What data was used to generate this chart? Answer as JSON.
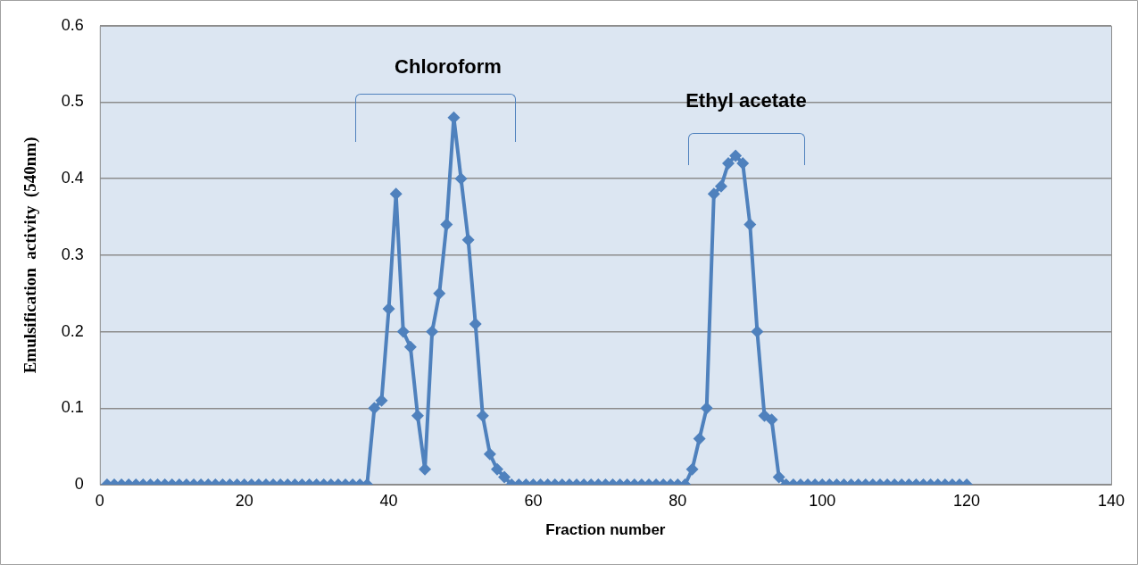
{
  "chart_data": {
    "type": "line",
    "xlabel": "Fraction number",
    "ylabel": "Emulsification  activity  (540nm)",
    "x": [
      1,
      2,
      3,
      4,
      5,
      6,
      7,
      8,
      9,
      10,
      11,
      12,
      13,
      14,
      15,
      16,
      17,
      18,
      19,
      20,
      21,
      22,
      23,
      24,
      25,
      26,
      27,
      28,
      29,
      30,
      31,
      32,
      33,
      34,
      35,
      36,
      37,
      38,
      39,
      40,
      41,
      42,
      43,
      44,
      45,
      46,
      47,
      48,
      49,
      50,
      51,
      52,
      53,
      54,
      55,
      56,
      57,
      58,
      59,
      60,
      61,
      62,
      63,
      64,
      65,
      66,
      67,
      68,
      69,
      70,
      71,
      72,
      73,
      74,
      75,
      76,
      77,
      78,
      79,
      80,
      81,
      82,
      83,
      84,
      85,
      86,
      87,
      88,
      89,
      90,
      91,
      92,
      93,
      94,
      95,
      96,
      97,
      98,
      99,
      100,
      101,
      102,
      103,
      104,
      105,
      106,
      107,
      108,
      109,
      110,
      111,
      112,
      113,
      114,
      115,
      116,
      117,
      118,
      119,
      120
    ],
    "series": [
      {
        "color": "#4f81bd",
        "values": [
          0,
          0,
          0,
          0,
          0,
          0,
          0,
          0,
          0,
          0,
          0,
          0,
          0,
          0,
          0,
          0,
          0,
          0,
          0,
          0,
          0,
          0,
          0,
          0,
          0,
          0,
          0,
          0,
          0,
          0,
          0,
          0,
          0,
          0,
          0,
          0,
          0,
          0.1,
          0.11,
          0.23,
          0.38,
          0.2,
          0.18,
          0.09,
          0.02,
          0.2,
          0.25,
          0.34,
          0.48,
          0.4,
          0.32,
          0.21,
          0.09,
          0.04,
          0.02,
          0.01,
          0,
          0,
          0,
          0,
          0,
          0,
          0,
          0,
          0,
          0,
          0,
          0,
          0,
          0,
          0,
          0,
          0,
          0,
          0,
          0,
          0,
          0,
          0,
          0,
          0,
          0.02,
          0.06,
          0.1,
          0.38,
          0.39,
          0.42,
          0.43,
          0.42,
          0.34,
          0.2,
          0.09,
          0.085,
          0.01,
          0,
          0,
          0,
          0,
          0,
          0,
          0,
          0,
          0,
          0,
          0,
          0,
          0,
          0,
          0,
          0,
          0,
          0,
          0,
          0,
          0,
          0,
          0,
          0,
          0,
          0
        ]
      }
    ],
    "xlim": [
      0,
      140
    ],
    "xticks": [
      0,
      20,
      40,
      60,
      80,
      100,
      120,
      140
    ],
    "ylim": [
      0,
      0.6
    ],
    "yticks": [
      {
        "value": 0,
        "label": "0"
      },
      {
        "value": 0.1,
        "label": "0.1"
      },
      {
        "value": 0.2,
        "label": "0.2"
      },
      {
        "value": 0.3,
        "label": "0.3"
      },
      {
        "value": 0.4,
        "label": "0.4"
      },
      {
        "value": 0.5,
        "label": "0.5"
      },
      {
        "value": 0.6,
        "label": "0.6"
      }
    ],
    "grid": "y",
    "marker": "diamond",
    "line_style": "solid",
    "legend": false,
    "annotations": [
      "Chloroform",
      "Ethyl acetate"
    ]
  }
}
